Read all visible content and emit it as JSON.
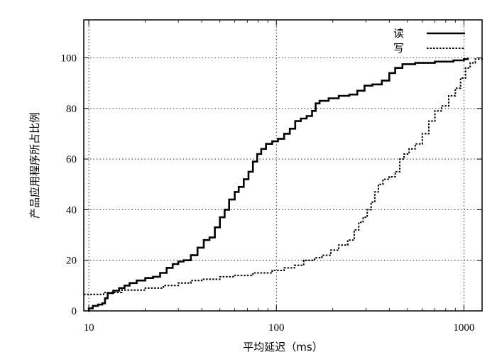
{
  "chart_data": {
    "type": "line",
    "xlabel": "平均延迟（ms）",
    "ylabel": "产品应用程序所占比例",
    "x_scale": "log",
    "xlim": [
      9.4,
      1250
    ],
    "ylim": [
      0,
      115
    ],
    "x_ticks": [
      {
        "value": 10,
        "label": "10"
      },
      {
        "value": 100,
        "label": "100"
      },
      {
        "value": 1000,
        "label": "1000"
      }
    ],
    "y_ticks": [
      {
        "value": 0,
        "label": "0"
      },
      {
        "value": 20,
        "label": "20"
      },
      {
        "value": 40,
        "label": "40"
      },
      {
        "value": 60,
        "label": "60"
      },
      {
        "value": 80,
        "label": "80"
      },
      {
        "value": 100,
        "label": "100"
      }
    ],
    "grid": true,
    "legend_position": "top-right",
    "series": [
      {
        "name": "读",
        "style": "solid",
        "color": "#000000",
        "points": [
          [
            9.9,
            0
          ],
          [
            10,
            1
          ],
          [
            10.5,
            2
          ],
          [
            11.2,
            2.5
          ],
          [
            11.8,
            3
          ],
          [
            12.2,
            5
          ],
          [
            12.6,
            7
          ],
          [
            13.5,
            8
          ],
          [
            14.5,
            9
          ],
          [
            15.5,
            10
          ],
          [
            16.5,
            11
          ],
          [
            18,
            12
          ],
          [
            20,
            13
          ],
          [
            22,
            13.5
          ],
          [
            24,
            15
          ],
          [
            26,
            17
          ],
          [
            28,
            18.5
          ],
          [
            30,
            19.5
          ],
          [
            32,
            20
          ],
          [
            35,
            22
          ],
          [
            38,
            25
          ],
          [
            41,
            28
          ],
          [
            44,
            29
          ],
          [
            47,
            33
          ],
          [
            50,
            37
          ],
          [
            53,
            40
          ],
          [
            56,
            44
          ],
          [
            60,
            47
          ],
          [
            63,
            49
          ],
          [
            67,
            52
          ],
          [
            71,
            55
          ],
          [
            75,
            59
          ],
          [
            79,
            62
          ],
          [
            83,
            64
          ],
          [
            88,
            66
          ],
          [
            95,
            67
          ],
          [
            102,
            68
          ],
          [
            110,
            70
          ],
          [
            118,
            72
          ],
          [
            126,
            75
          ],
          [
            135,
            76
          ],
          [
            145,
            77
          ],
          [
            155,
            79
          ],
          [
            162,
            82
          ],
          [
            170,
            83
          ],
          [
            190,
            84
          ],
          [
            215,
            85
          ],
          [
            245,
            85.5
          ],
          [
            270,
            87
          ],
          [
            295,
            89
          ],
          [
            325,
            89.5
          ],
          [
            365,
            91
          ],
          [
            400,
            94
          ],
          [
            430,
            96
          ],
          [
            470,
            97.5
          ],
          [
            550,
            98
          ],
          [
            700,
            98.5
          ],
          [
            880,
            99
          ],
          [
            1000,
            99.5
          ],
          [
            1050,
            100
          ]
        ]
      },
      {
        "name": "写",
        "style": "dashed",
        "color": "#000000",
        "points": [
          [
            9.4,
            6.5
          ],
          [
            12,
            7.3
          ],
          [
            15,
            8.2
          ],
          [
            20,
            9
          ],
          [
            25,
            10
          ],
          [
            30,
            11
          ],
          [
            35,
            12
          ],
          [
            40,
            12.5
          ],
          [
            50,
            13.5
          ],
          [
            60,
            14
          ],
          [
            75,
            15
          ],
          [
            95,
            16
          ],
          [
            110,
            17
          ],
          [
            125,
            18
          ],
          [
            140,
            20
          ],
          [
            160,
            21
          ],
          [
            175,
            22
          ],
          [
            195,
            24
          ],
          [
            215,
            26
          ],
          [
            240,
            28
          ],
          [
            260,
            32
          ],
          [
            275,
            35
          ],
          [
            290,
            37
          ],
          [
            305,
            40
          ],
          [
            320,
            43
          ],
          [
            335,
            47
          ],
          [
            350,
            50
          ],
          [
            370,
            52
          ],
          [
            400,
            53
          ],
          [
            430,
            55
          ],
          [
            455,
            60
          ],
          [
            480,
            62
          ],
          [
            510,
            64
          ],
          [
            550,
            66
          ],
          [
            600,
            70
          ],
          [
            650,
            75
          ],
          [
            700,
            79
          ],
          [
            760,
            81
          ],
          [
            830,
            85
          ],
          [
            900,
            88
          ],
          [
            960,
            92
          ],
          [
            1020,
            96
          ],
          [
            1080,
            98
          ],
          [
            1150,
            99.5
          ],
          [
            1250,
            100
          ]
        ]
      }
    ]
  }
}
